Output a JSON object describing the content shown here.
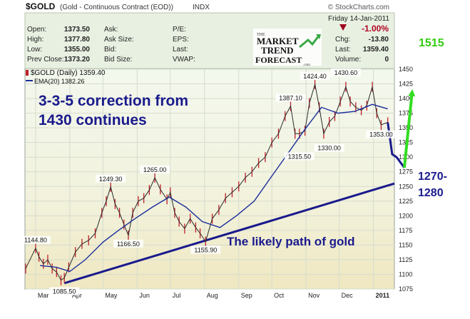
{
  "header": {
    "symbol": "$GOLD",
    "description": "(Gold - Continuous Contract (EOD))",
    "exchange": "INDX",
    "watermark": "© StockCharts.com",
    "date": "Friday 14-Jan-2011",
    "change_pct": "-1.00%",
    "quote_left": [
      {
        "label": "Open:",
        "value": "1373.50"
      },
      {
        "label": "High:",
        "value": "1377.80"
      },
      {
        "label": "Low:",
        "value": "1355.00"
      },
      {
        "label": "Prev Close:",
        "value": "1373.20"
      }
    ],
    "quote_mid": [
      "Ask:",
      "Ask Size:",
      "Bid:",
      "Bid Size:"
    ],
    "quote_right": [
      "P/E:",
      "EPS:",
      "Last:",
      "VWAP:"
    ],
    "quote_far": [
      {
        "label": "Chg:",
        "value": "-13.80"
      },
      {
        "label": "Last:",
        "value": "1359.40"
      },
      {
        "label": "Volume:",
        "value": "0"
      }
    ]
  },
  "logo": {
    "lines": [
      "THE",
      "MARKET",
      "TREND",
      "FORECAST",
      ".com"
    ]
  },
  "legend": {
    "main": "$GOLD (Daily) 1359.40",
    "ema": "EMA(20) 1382.26"
  },
  "annotations": {
    "headline_line1": "3-3-5 correction from",
    "headline_line2": "1430 continues",
    "path_text": "The likely path of gold",
    "target": "1515",
    "support_line1": "1270-",
    "support_line2": "1280"
  },
  "colors": {
    "price": "#c0202a",
    "ema": "#1b2d9c",
    "trendline": "#1a1a8c",
    "projection": "#33dd22",
    "target_text": "#33cc11",
    "annotation_text": "#1a1a8c",
    "change": "#b00020"
  },
  "chart_data": {
    "type": "line",
    "y_axis_position": "right",
    "ylim": [
      1075,
      1450
    ],
    "yticks": [
      1075,
      1100,
      1125,
      1150,
      1175,
      1200,
      1225,
      1250,
      1275,
      1300,
      1325,
      1350,
      1375,
      1400,
      1425,
      1450
    ],
    "x_labels": [
      "Mar",
      "Apr",
      "May",
      "Jun",
      "Jul",
      "Aug",
      "Sep",
      "Oct",
      "Nov",
      "Dec",
      "2011"
    ],
    "x_label_dates": [
      "2010-03-01",
      "2010-04-01",
      "2010-05-01",
      "2010-06-01",
      "2010-07-01",
      "2010-08-01",
      "2010-09-01",
      "2010-10-01",
      "2010-11-01",
      "2010-12-01",
      "2011-01-01"
    ],
    "x_range": [
      "2010-02-20",
      "2011-01-20"
    ],
    "series": [
      {
        "name": "$GOLD (Daily)",
        "key": "price",
        "x": [
          "2010-02-20",
          "2010-03-01",
          "2010-03-04",
          "2010-03-08",
          "2010-03-12",
          "2010-03-16",
          "2010-03-20",
          "2010-03-24",
          "2010-03-27",
          "2010-03-31",
          "2010-04-06",
          "2010-04-12",
          "2010-04-18",
          "2010-04-24",
          "2010-04-30",
          "2010-05-04",
          "2010-05-08",
          "2010-05-12",
          "2010-05-16",
          "2010-05-20",
          "2010-05-24",
          "2010-05-28",
          "2010-06-02",
          "2010-06-07",
          "2010-06-12",
          "2010-06-17",
          "2010-06-22",
          "2010-06-28",
          "2010-07-01",
          "2010-07-05",
          "2010-07-09",
          "2010-07-14",
          "2010-07-19",
          "2010-07-24",
          "2010-07-28",
          "2010-08-02",
          "2010-08-08",
          "2010-08-14",
          "2010-08-20",
          "2010-08-26",
          "2010-09-01",
          "2010-09-07",
          "2010-09-13",
          "2010-09-19",
          "2010-09-25",
          "2010-10-01",
          "2010-10-07",
          "2010-10-13",
          "2010-10-18",
          "2010-10-22",
          "2010-10-26",
          "2010-10-31",
          "2010-11-04",
          "2010-11-09",
          "2010-11-13",
          "2010-11-17",
          "2010-11-22",
          "2010-11-27",
          "2010-12-02",
          "2010-12-07",
          "2010-12-11",
          "2010-12-16",
          "2010-12-21",
          "2010-12-26",
          "2010-12-31",
          "2011-01-04",
          "2011-01-08",
          "2011-01-14"
        ],
        "values": [
          1110,
          1144.8,
          1130,
          1118,
          1125,
          1110,
          1104,
          1090,
          1094,
          1112,
          1138,
          1152,
          1158,
          1170,
          1205,
          1225,
          1249.3,
          1220,
          1205,
          1185,
          1166.5,
          1205,
          1225,
          1230,
          1244,
          1265,
          1245,
          1228,
          1240,
          1205,
          1190,
          1178,
          1195,
          1180,
          1170,
          1155.9,
          1195,
          1210,
          1230,
          1240,
          1250,
          1265,
          1275,
          1290,
          1300,
          1325,
          1340,
          1370,
          1387.1,
          1340,
          1340,
          1345,
          1392,
          1424.4,
          1385,
          1340,
          1360,
          1370,
          1395,
          1420,
          1395,
          1385,
          1380,
          1388,
          1420,
          1375,
          1355,
          1359.4
        ]
      },
      {
        "name": "EMA(20)",
        "key": "ema",
        "x": [
          "2010-03-05",
          "2010-03-20",
          "2010-04-01",
          "2010-04-15",
          "2010-05-01",
          "2010-05-15",
          "2010-05-30",
          "2010-06-15",
          "2010-06-30",
          "2010-07-15",
          "2010-07-30",
          "2010-08-15",
          "2010-08-30",
          "2010-09-15",
          "2010-09-30",
          "2010-10-15",
          "2010-10-30",
          "2010-11-15",
          "2010-11-30",
          "2010-12-15",
          "2010-12-31",
          "2011-01-14"
        ],
        "values": [
          1115,
          1112,
          1105,
          1125,
          1155,
          1175,
          1195,
          1215,
          1232,
          1215,
          1190,
          1180,
          1200,
          1225,
          1265,
          1305,
          1345,
          1385,
          1375,
          1378,
          1390,
          1382.26
        ]
      }
    ],
    "price_labels": [
      {
        "x": "2010-03-01",
        "value": 1144.8,
        "text": "1144.80",
        "pos": "above"
      },
      {
        "x": "2010-03-27",
        "value": 1085.5,
        "text": "1085.50",
        "pos": "below"
      },
      {
        "x": "2010-05-08",
        "value": 1249.3,
        "text": "1249.30",
        "pos": "above"
      },
      {
        "x": "2010-05-24",
        "value": 1166.5,
        "text": "1166.50",
        "pos": "below"
      },
      {
        "x": "2010-06-17",
        "value": 1265.0,
        "text": "1265.00",
        "pos": "above"
      },
      {
        "x": "2010-08-02",
        "value": 1155.9,
        "text": "1155.90",
        "pos": "below"
      },
      {
        "x": "2010-10-18",
        "value": 1387.1,
        "text": "1387.10",
        "pos": "above"
      },
      {
        "x": "2010-10-26",
        "value": 1315.5,
        "text": "1315.50",
        "pos": "below"
      },
      {
        "x": "2010-11-09",
        "value": 1424.4,
        "text": "1424.40",
        "pos": "above"
      },
      {
        "x": "2010-11-22",
        "value": 1330.0,
        "text": "1330.00",
        "pos": "below"
      },
      {
        "x": "2010-12-07",
        "value": 1430.6,
        "text": "1430.60",
        "pos": "above"
      },
      {
        "x": "2011-01-08",
        "value": 1353.0,
        "text": "1353.00",
        "pos": "below"
      }
    ],
    "trendline": {
      "x": [
        "2010-03-27",
        "2011-01-20"
      ],
      "values": [
        1085,
        1255
      ]
    },
    "projection": {
      "x": [
        "2011-01-14",
        "2011-01-18",
        "2011-01-22",
        "2011-01-29",
        "2011-02-05"
      ],
      "values": [
        1359,
        1305,
        1300,
        1282,
        1410
      ]
    }
  }
}
